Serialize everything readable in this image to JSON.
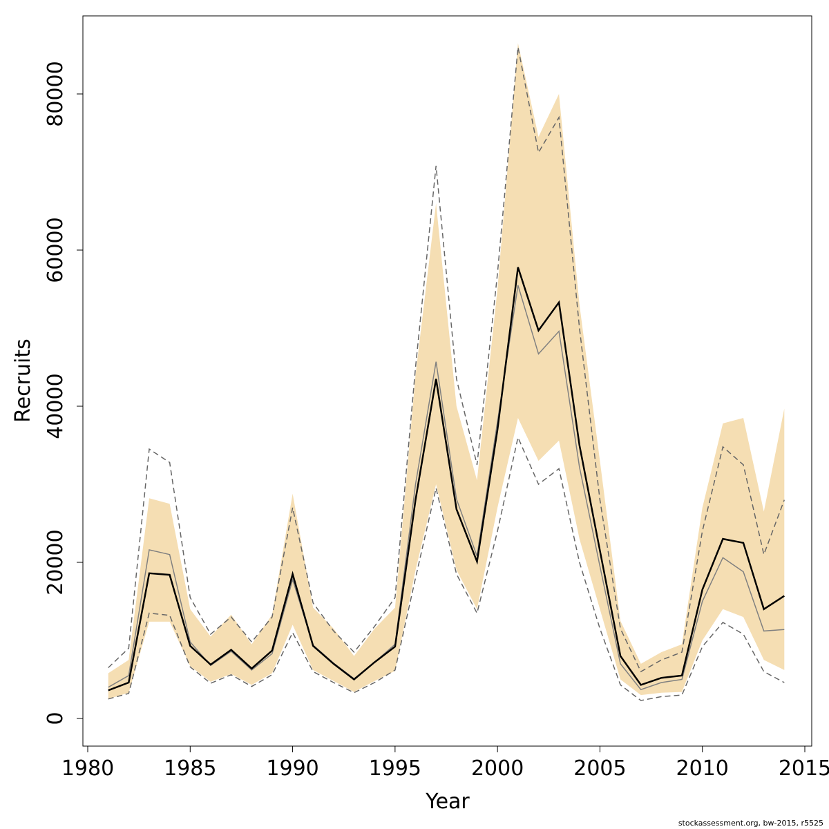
{
  "chart_data": {
    "type": "line",
    "title": "",
    "xlabel": "Year",
    "ylabel": "Recruits",
    "xlim": [
      1980,
      2015
    ],
    "ylim": [
      0,
      85000
    ],
    "x_ticks": [
      1980,
      1985,
      1990,
      1995,
      2000,
      2005,
      2010,
      2015
    ],
    "y_ticks": [
      0,
      20000,
      40000,
      60000,
      80000
    ],
    "x": [
      1981,
      1982,
      1983,
      1984,
      1985,
      1986,
      1987,
      1988,
      1989,
      1990,
      1991,
      1992,
      1993,
      1994,
      1995,
      1996,
      1997,
      1998,
      1999,
      2000,
      2001,
      2002,
      2003,
      2004,
      2005,
      2006,
      2007,
      2008,
      2009,
      2010,
      2011,
      2012,
      2013,
      2014
    ],
    "series": [
      {
        "role": "band",
        "color": "#f5deb3",
        "lower": [
          2500,
          3300,
          12400,
          12400,
          6700,
          4700,
          5700,
          4300,
          5800,
          12000,
          6200,
          4800,
          3400,
          4800,
          6100,
          19000,
          30000,
          19000,
          14000,
          27000,
          38500,
          33000,
          35600,
          23000,
          14000,
          5000,
          3000,
          3300,
          3400,
          10000,
          14000,
          13000,
          7500,
          6200
        ],
        "upper": [
          5800,
          7500,
          28200,
          27500,
          14000,
          10500,
          13300,
          9500,
          13300,
          28800,
          14200,
          11500,
          8000,
          11500,
          14200,
          44000,
          66000,
          40000,
          30500,
          55000,
          86500,
          74500,
          80000,
          53000,
          33000,
          12500,
          7000,
          8500,
          9500,
          27000,
          37800,
          38500,
          26500,
          39700
        ]
      },
      {
        "role": "upper-dashed",
        "color": "#666666",
        "values": [
          6500,
          9000,
          34500,
          32800,
          15500,
          10800,
          13000,
          9800,
          13000,
          27000,
          14800,
          11200,
          8500,
          11800,
          15500,
          45000,
          70800,
          43500,
          32500,
          57000,
          86000,
          72500,
          77000,
          50000,
          28000,
          11500,
          6000,
          7500,
          8500,
          24000,
          34800,
          32500,
          21000,
          28000
        ]
      },
      {
        "role": "lower-dashed",
        "color": "#666666",
        "values": [
          2500,
          3200,
          13500,
          13200,
          6600,
          4500,
          5600,
          4100,
          5600,
          11000,
          6000,
          4600,
          3300,
          4600,
          6200,
          18000,
          29500,
          18500,
          13500,
          24000,
          36000,
          30000,
          32000,
          20000,
          11500,
          4300,
          2300,
          2800,
          3000,
          9200,
          12300,
          10800,
          6000,
          4600
        ]
      },
      {
        "role": "alternative-estimate",
        "color": "#808080",
        "values": [
          4000,
          5500,
          21600,
          21000,
          9800,
          6800,
          8600,
          6200,
          8300,
          17800,
          9400,
          7100,
          5100,
          7200,
          9500,
          30000,
          45700,
          28100,
          20800,
          38000,
          55500,
          46700,
          49600,
          32200,
          19500,
          7000,
          3700,
          4600,
          5000,
          15000,
          20600,
          18800,
          11200,
          11400
        ]
      },
      {
        "role": "base-estimate",
        "color": "#000000",
        "values": [
          3600,
          4600,
          18600,
          18400,
          9300,
          6900,
          8800,
          6400,
          8700,
          18500,
          9300,
          7000,
          5000,
          7200,
          9200,
          28000,
          43500,
          26800,
          20100,
          37000,
          57800,
          49700,
          53300,
          35000,
          21500,
          8000,
          4300,
          5200,
          5500,
          16500,
          23000,
          22500,
          14000,
          15700
        ]
      }
    ]
  },
  "footnote": "stockassessment.org, bw-2015, r5525"
}
